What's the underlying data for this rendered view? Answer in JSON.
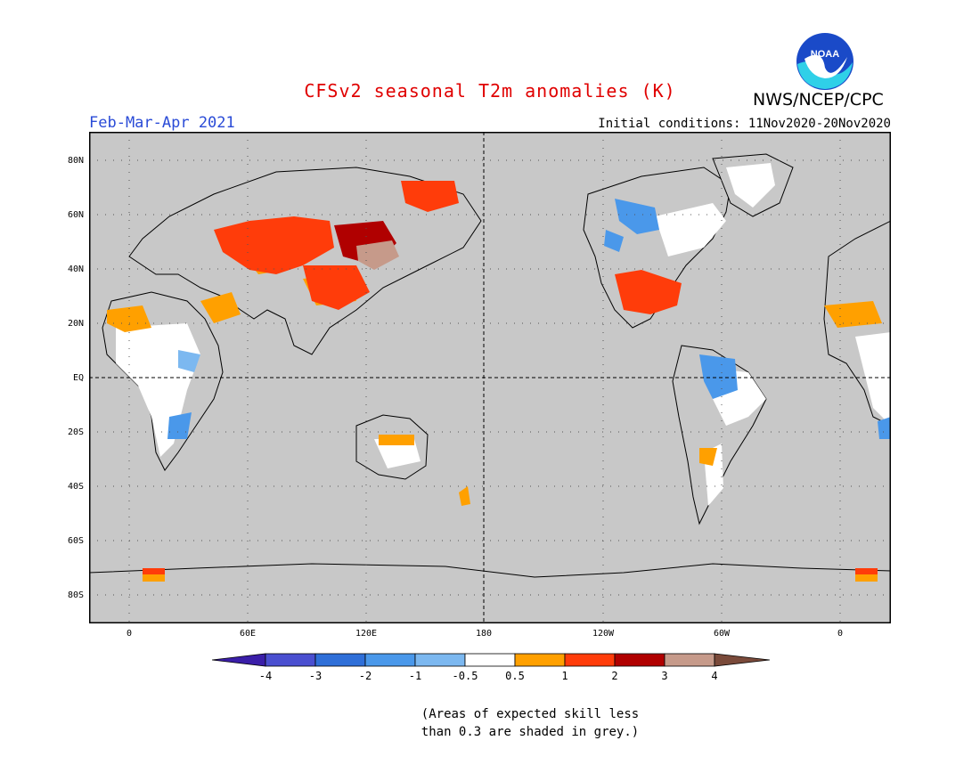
{
  "title": "CFSv2 seasonal T2m anomalies (K)",
  "agency": "NWS/NCEP/CPC",
  "logo_text": "NOAA",
  "period": "Feb-Mar-Apr 2021",
  "initial_conditions": "Initial conditions: 11Nov2020-20Nov2020",
  "lat_labels": [
    "80N",
    "60N",
    "40N",
    "20N",
    "EQ",
    "20S",
    "40S",
    "60S",
    "80S"
  ],
  "lon_labels": [
    "0",
    "60E",
    "120E",
    "180",
    "120W",
    "60W",
    "0"
  ],
  "colorbar_labels": [
    "-4",
    "-3",
    "-2",
    "-1",
    "-0.5",
    "0.5",
    "1",
    "2",
    "3",
    "4"
  ],
  "colorbar_colors": [
    "#3a1ea8",
    "#4a4fd0",
    "#2f6fd8",
    "#4a98ea",
    "#7cb8f0",
    "#ffffff",
    "#ffa000",
    "#ff3c0a",
    "#b00000",
    "#c69a8a",
    "#7a4a3a"
  ],
  "note_line1": "(Areas of expected skill less",
  "note_line2": "than 0.3 are shaded in grey.)",
  "colors": {
    "title": "#e00000",
    "period": "#2a4bd7",
    "sea_grey": "#c8c8c8",
    "land_outline": "#000000"
  }
}
